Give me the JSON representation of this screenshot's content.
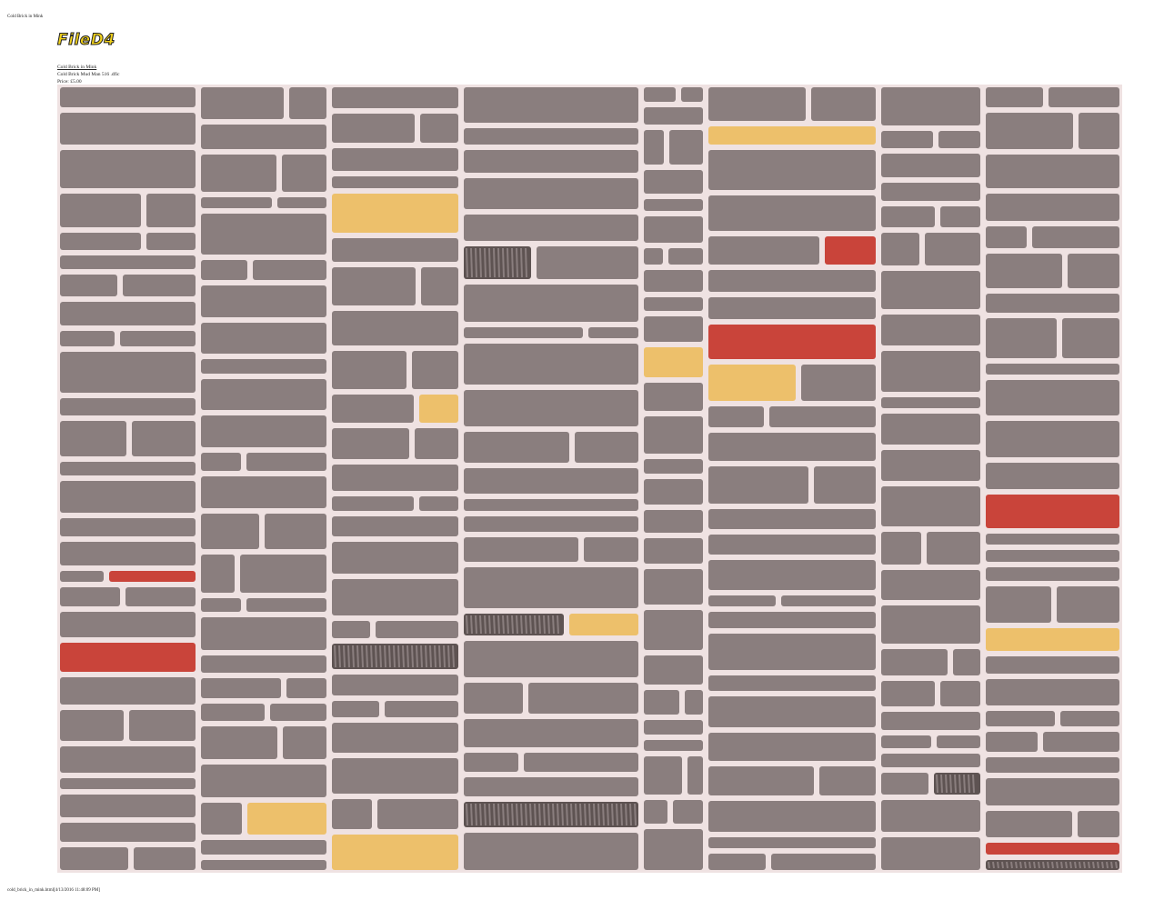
{
  "header": {
    "title": "Cold Brick in Mink",
    "logo": "FileD4"
  },
  "product": {
    "link": "Cold Brick in Mink",
    "description": "Cold Brick Mud Man 516 .dfic",
    "price": "Price: £5.00"
  },
  "footer": {
    "text": "cold_brick_in_mink.html[4/13/2016 11:48:09 PM]"
  }
}
